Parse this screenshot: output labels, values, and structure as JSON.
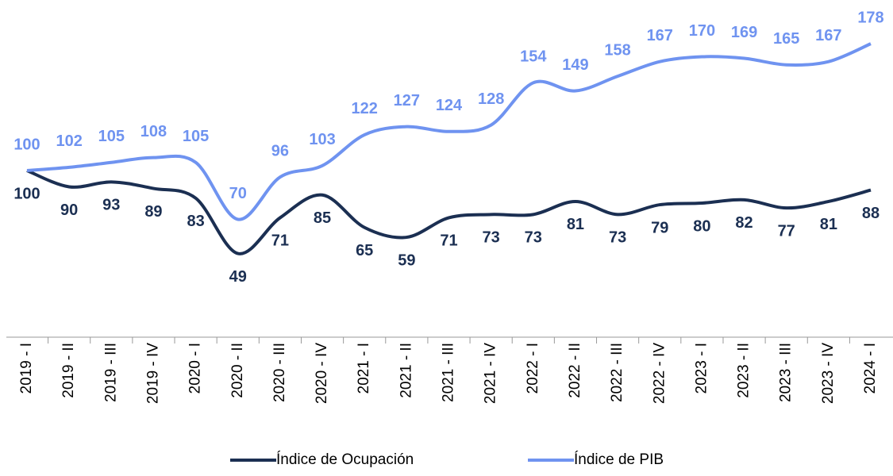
{
  "chart_data": {
    "type": "line",
    "categories": [
      "2019 - I",
      "2019 - II",
      "2019 - III",
      "2019 - IV",
      "2020 - I",
      "2020 - II",
      "2020 - III",
      "2020 - IV",
      "2021 - I",
      "2021 - II",
      "2021 - III",
      "2021 - IV",
      "2022 - I",
      "2022 - II",
      "2022 - III",
      "2022 - IV",
      "2023 - I",
      "2023 - II",
      "2023 - III",
      "2023 - IV",
      "2024 - I"
    ],
    "series": [
      {
        "name": "Índice de Ocupación",
        "color": "#1b2f52",
        "values": [
          100,
          90,
          93,
          89,
          83,
          49,
          71,
          85,
          65,
          59,
          71,
          73,
          73,
          81,
          73,
          79,
          80,
          82,
          77,
          81,
          88
        ]
      },
      {
        "name": "Índice de PIB",
        "color": "#6f93f0",
        "values": [
          100,
          102,
          105,
          108,
          105,
          70,
          96,
          103,
          122,
          127,
          124,
          128,
          154,
          149,
          158,
          167,
          170,
          169,
          165,
          167,
          178
        ]
      }
    ]
  }
}
